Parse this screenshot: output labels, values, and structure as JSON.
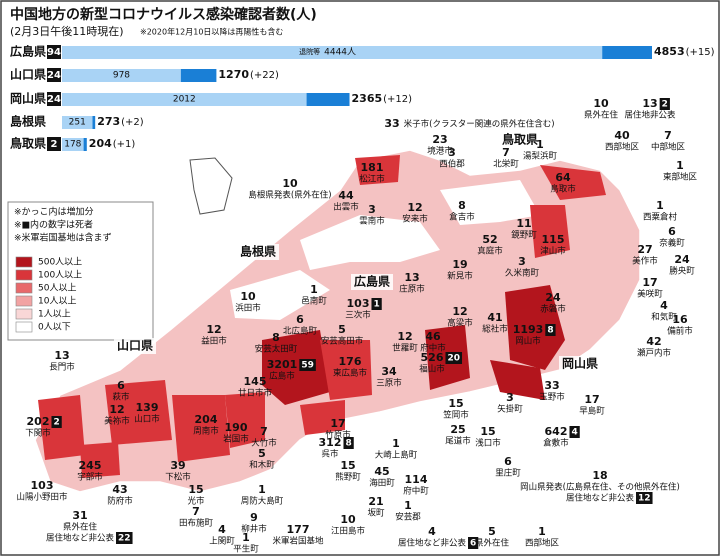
{
  "header": {
    "title": "中国地方の新型コロナウイルス感染確認者数(人)",
    "subtitle": "(2月3日午後11時現在)",
    "note": "※2020年12月10日以降は再陽性も含む"
  },
  "prefectures": [
    {
      "name": "広島県",
      "deaths": 94,
      "recovered_caption": "退院等",
      "recovered": {
        "value": 4444,
        "label": "4444人"
      },
      "total": 4853,
      "change": "(+15)"
    },
    {
      "name": "山口県",
      "deaths": 24,
      "recovered": 978,
      "total": 1270,
      "change": "(+22)"
    },
    {
      "name": "岡山県",
      "deaths": 24,
      "recovered": 2012,
      "total": 2365,
      "change": "(+12)"
    },
    {
      "name": "島根県",
      "recovered": 251,
      "total": 273,
      "change": "(+2)"
    },
    {
      "name": "鳥取県",
      "deaths": 2,
      "recovered": 178,
      "total": 204,
      "change": "(+1)"
    }
  ],
  "notes": [
    "※かっこ内は増加分",
    "※■内の数字は死者",
    "※米軍岩国基地は含まず"
  ],
  "legend": [
    {
      "label": "500人以上",
      "color": "#b3151d"
    },
    {
      "label": "100人以上",
      "color": "#d9353a"
    },
    {
      "label": "50人以上",
      "color": "#e8696b"
    },
    {
      "label": "10人以上",
      "color": "#f2a3a3"
    },
    {
      "label": "1人以上",
      "color": "#f9d7d7"
    },
    {
      "label": "0人以下",
      "color": "#ffffff"
    }
  ],
  "prefecture_labels": [
    "島根県",
    "広島県",
    "鳥取県",
    "山口県",
    "岡山県"
  ],
  "places": [
    {
      "count": 10,
      "name": "県外在住"
    },
    {
      "count": 13,
      "name": "居住地非公表",
      "deaths": 2
    },
    {
      "count": 40,
      "name": "西部地区"
    },
    {
      "count": 7,
      "name": "中部地区"
    },
    {
      "count": 1,
      "name": "東部地区"
    },
    {
      "count": 33,
      "name": "米子市(クラスター関連の県外在住含む)"
    },
    {
      "count": 23,
      "name": "境港市"
    },
    {
      "count": 3,
      "name": "西伯郡"
    },
    {
      "count": 7,
      "name": "北栄町"
    },
    {
      "count": 1,
      "name": "湯梨浜町"
    },
    {
      "count": 64,
      "name": "鳥取市"
    },
    {
      "count": 1,
      "name": "西粟倉村"
    },
    {
      "count": 6,
      "name": "奈義町"
    },
    {
      "count": 27,
      "name": "美作市"
    },
    {
      "count": 24,
      "name": "勝央町"
    },
    {
      "count": 17,
      "name": "美咲町"
    },
    {
      "count": 4,
      "name": "和気町"
    },
    {
      "count": 16,
      "name": "備前市"
    },
    {
      "count": 42,
      "name": "瀬戸内市"
    },
    {
      "count": 181,
      "name": "松江市"
    },
    {
      "count": 44,
      "name": "出雲市"
    },
    {
      "count": 3,
      "name": "雲南市"
    },
    {
      "count": 12,
      "name": "安来市"
    },
    {
      "count": 8,
      "name": "倉吉市"
    },
    {
      "count": 11,
      "name": "鏡野町"
    },
    {
      "count": 52,
      "name": "真庭市"
    },
    {
      "count": 115,
      "name": "津山市"
    },
    {
      "count": 10,
      "name": "島根県発表(県外在住)"
    },
    {
      "count": 19,
      "name": "新見市"
    },
    {
      "count": 3,
      "name": "久米南町"
    },
    {
      "count": 13,
      "name": "庄原市"
    },
    {
      "count": 1,
      "name": "邑南町"
    },
    {
      "count": 10,
      "name": "浜田市"
    },
    {
      "count": 103,
      "name": "三次市",
      "deaths": 1
    },
    {
      "count": 12,
      "name": "高梁市"
    },
    {
      "count": 24,
      "name": "赤磐市"
    },
    {
      "count": 12,
      "name": "益田市"
    },
    {
      "count": 6,
      "name": "北広島町"
    },
    {
      "count": 5,
      "name": "安芸高田市"
    },
    {
      "count": 12,
      "name": "世羅町"
    },
    {
      "count": 46,
      "name": "府中市"
    },
    {
      "count": 41,
      "name": "総社市"
    },
    {
      "count": 1193,
      "name": "岡山市",
      "deaths": 8
    },
    {
      "count": 8,
      "name": "安芸太田町"
    },
    {
      "count": 13,
      "name": "長門市"
    },
    {
      "count": 3201,
      "name": "広島市",
      "deaths": 59
    },
    {
      "count": 176,
      "name": "東広島市"
    },
    {
      "count": 34,
      "name": "三原市"
    },
    {
      "count": 526,
      "name": "福山市",
      "deaths": 20
    },
    {
      "count": 6,
      "name": "萩市"
    },
    {
      "count": 145,
      "name": "廿日市市"
    },
    {
      "count": 12,
      "name": "美祢市"
    },
    {
      "count": 202,
      "name": "下関市",
      "deaths": 2
    },
    {
      "count": 139,
      "name": "山口市"
    },
    {
      "count": 204,
      "name": "周南市"
    },
    {
      "count": 190,
      "name": "岩国市"
    },
    {
      "count": 7,
      "name": "大竹市"
    },
    {
      "count": 5,
      "name": "和木町"
    },
    {
      "count": 17,
      "name": "竹原市"
    },
    {
      "count": 1,
      "name": "大崎上島町"
    },
    {
      "count": 25,
      "name": "尾道市"
    },
    {
      "count": 15,
      "name": "笠岡市"
    },
    {
      "count": 3,
      "name": "矢掛町"
    },
    {
      "count": 15,
      "name": "浅口市"
    },
    {
      "count": 642,
      "name": "倉敷市",
      "deaths": 4
    },
    {
      "count": 33,
      "name": "玉野市"
    },
    {
      "count": 17,
      "name": "早島町"
    },
    {
      "count": 6,
      "name": "里庄町"
    },
    {
      "count": 312,
      "name": "呉市",
      "deaths": 8
    },
    {
      "count": 15,
      "name": "熊野町"
    },
    {
      "count": 45,
      "name": "海田町"
    },
    {
      "count": 114,
      "name": "府中町"
    },
    {
      "count": 21,
      "name": "坂町"
    },
    {
      "count": 10,
      "name": "江田島市"
    },
    {
      "count": 1,
      "name": "安芸郡"
    },
    {
      "count": 4,
      "name": "居住地など非公表",
      "deaths": 6
    },
    {
      "count": 5,
      "name": "県外在住"
    },
    {
      "count": 1,
      "name": "西部地区"
    },
    {
      "count": 245,
      "name": "宇部市"
    },
    {
      "count": 43,
      "name": "防府市"
    },
    {
      "count": 103,
      "name": "山陽小野田市"
    },
    {
      "count": 39,
      "name": "下松市"
    },
    {
      "count": 15,
      "name": "光市"
    },
    {
      "count": 7,
      "name": "田布施町"
    },
    {
      "count": 1,
      "name": "周防大島町"
    },
    {
      "count": 9,
      "name": "柳井市"
    },
    {
      "count": 4,
      "name": "上関町"
    },
    {
      "count": 1,
      "name": "平生町"
    },
    {
      "count": 177,
      "name": "米軍岩国基地"
    },
    {
      "count": 31,
      "name": "県外在住",
      "name2": "居住地など非公表",
      "deaths": 22
    },
    {
      "count": 18,
      "name": "岡山県発表(広島県在住、その他県外在住)",
      "name2": "居住地など非公表",
      "deaths": 12
    }
  ]
}
